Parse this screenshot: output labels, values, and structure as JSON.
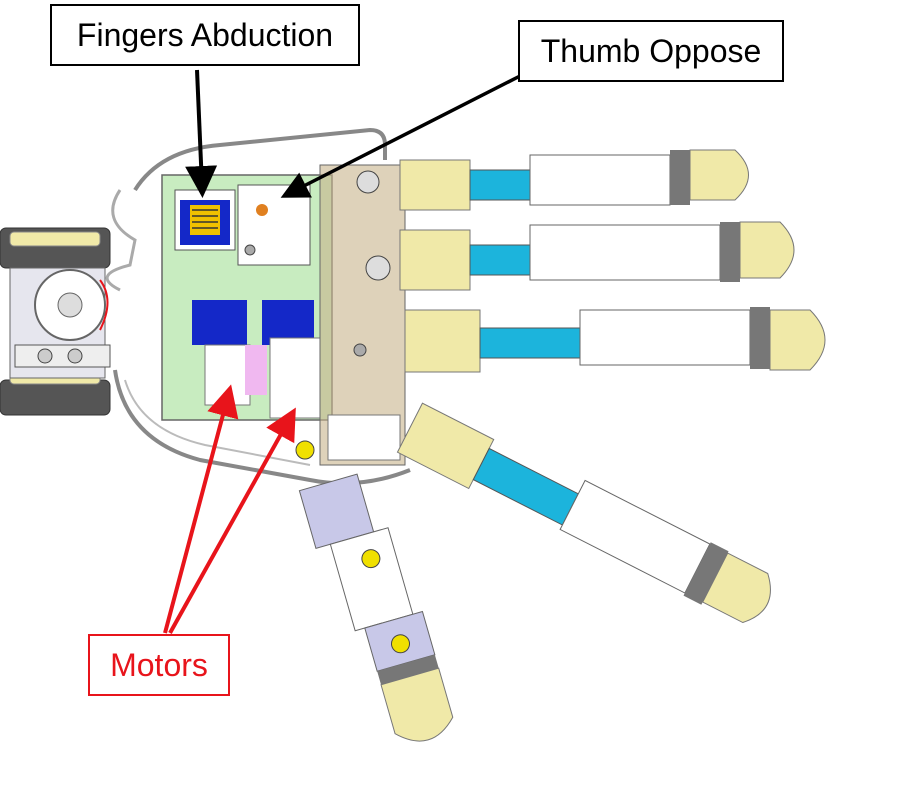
{
  "labels": {
    "fingers_abduction": "Fingers Abduction",
    "thumb_oppose": "Thumb Oppose",
    "motors": "Motors"
  },
  "colors": {
    "arrow_black": "#000000",
    "arrow_red": "#e8141b",
    "motor_blue": "#1428c8",
    "tendon_cyan": "#1cb4dc",
    "fingertip_yellow": "#f0e9a8",
    "palm_green": "#c8ecc0",
    "cover_tan": "#c8b48c",
    "accent_yellow": "#f0e000"
  }
}
